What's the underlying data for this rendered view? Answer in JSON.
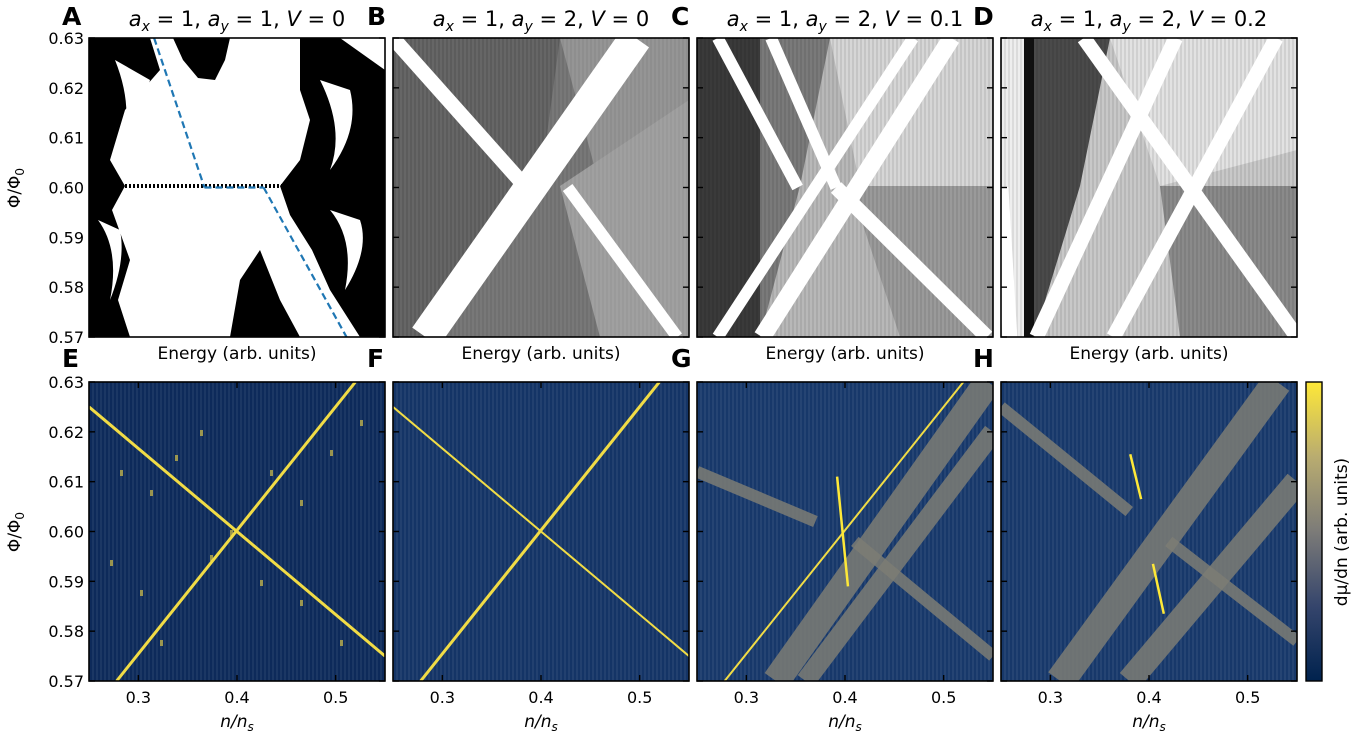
{
  "figure": {
    "panel_labels": [
      "A",
      "B",
      "C",
      "D",
      "E",
      "F",
      "G",
      "H"
    ],
    "top_titles": [
      {
        "ax": "1",
        "ay": "1",
        "V": "0"
      },
      {
        "ax": "1",
        "ay": "2",
        "V": "0"
      },
      {
        "ax": "1",
        "ay": "2",
        "V": "0.1"
      },
      {
        "ax": "1",
        "ay": "2",
        "V": "0.2"
      }
    ],
    "top_xlabel": "Energy (arb. units)",
    "ylabel_main": "Φ/Φ",
    "ylabel_sub": "0",
    "colorbar_label": "dμ/dn (arb. units)",
    "bottom_xlabel_main": "n/n",
    "bottom_xlabel_sub": "s"
  },
  "chart_data": [
    {
      "type": "heatmap",
      "panel": "A",
      "title": "a_x = 1, a_y = 1, V = 0",
      "xlabel": "Energy (arb. units)",
      "ylabel": "Φ/Φ0",
      "yticks": [
        "0.57",
        "0.58",
        "0.59",
        "0.60",
        "0.61",
        "0.62",
        "0.63"
      ],
      "ylim": [
        0.57,
        0.63
      ],
      "colormap": "gray",
      "overlay": {
        "style": "dashed",
        "color": "#1f77b4",
        "segments": [
          [
            [
              0.22,
              0.63
            ],
            [
              0.39,
              0.6
            ]
          ],
          [
            [
              0.39,
              0.6
            ],
            [
              0.59,
              0.6
            ]
          ],
          [
            [
              0.59,
              0.6
            ],
            [
              0.87,
              0.57
            ]
          ]
        ]
      },
      "bands": []
    },
    {
      "type": "heatmap",
      "panel": "B",
      "title": "a_x = 1, a_y = 2, V = 0",
      "xlabel": "Energy (arb. units)",
      "ylim": [
        0.57,
        0.63
      ],
      "colormap": "gray",
      "bands": [
        {
          "x0": 0.0,
          "y0": 0.63,
          "x1": 0.45,
          "y1": 0.6,
          "w": 0.05
        },
        {
          "x0": 0.11,
          "y0": 0.57,
          "x1": 0.82,
          "y1": 0.63,
          "w": 0.11
        },
        {
          "x0": 0.59,
          "y0": 0.6,
          "x1": 0.96,
          "y1": 0.57,
          "w": 0.04
        }
      ]
    },
    {
      "type": "heatmap",
      "panel": "C",
      "title": "a_x = 1, a_y = 2, V = 0.1",
      "xlabel": "Energy (arb. units)",
      "ylim": [
        0.57,
        0.63
      ],
      "colormap": "gray",
      "bands": [
        {
          "x0": 0.07,
          "y0": 0.63,
          "x1": 0.34,
          "y1": 0.6,
          "w": 0.04
        },
        {
          "x0": 0.25,
          "y0": 0.63,
          "x1": 0.47,
          "y1": 0.6,
          "w": 0.04
        },
        {
          "x0": 0.47,
          "y0": 0.6,
          "x1": 0.98,
          "y1": 0.57,
          "w": 0.05
        },
        {
          "x0": 0.07,
          "y0": 0.57,
          "x1": 0.73,
          "y1": 0.63,
          "w": 0.04
        },
        {
          "x0": 0.22,
          "y0": 0.57,
          "x1": 0.86,
          "y1": 0.63,
          "w": 0.06
        }
      ]
    },
    {
      "type": "heatmap",
      "panel": "D",
      "title": "a_x = 1, a_y = 2, V = 0.2",
      "xlabel": "Energy (arb. units)",
      "ylim": [
        0.57,
        0.63
      ],
      "colormap": "gray",
      "bands": [
        {
          "x0": 0.0,
          "y0": 0.6,
          "x1": 0.03,
          "y1": 0.57,
          "w": 0.05
        },
        {
          "x0": 0.28,
          "y0": 0.63,
          "x1": 0.64,
          "y1": 0.6,
          "w": 0.05
        },
        {
          "x0": 0.64,
          "y0": 0.6,
          "x1": 1.0,
          "y1": 0.57,
          "w": 0.05
        },
        {
          "x0": 0.12,
          "y0": 0.57,
          "x1": 0.59,
          "y1": 0.63,
          "w": 0.05
        },
        {
          "x0": 0.38,
          "y0": 0.57,
          "x1": 0.93,
          "y1": 0.63,
          "w": 0.05
        }
      ]
    },
    {
      "type": "heatmap",
      "panel": "E",
      "xlabel": "n/n_s",
      "ylabel": "Φ/Φ0",
      "xticks": [
        "0.3",
        "0.4",
        "0.5"
      ],
      "xlim": [
        0.25,
        0.55
      ],
      "ylim": [
        0.57,
        0.63
      ],
      "colormap": "cividis",
      "lines": [
        {
          "x0": 0.278,
          "y0": 0.57,
          "x1": 0.52,
          "y1": 0.63,
          "w": 3
        },
        {
          "x0": 0.25,
          "y0": 0.625,
          "x1": 0.55,
          "y1": 0.575,
          "w": 3
        }
      ],
      "steps": [],
      "slabs": []
    },
    {
      "type": "heatmap",
      "panel": "F",
      "xlabel": "n/n_s",
      "xticks": [
        "0.3",
        "0.4",
        "0.5"
      ],
      "xlim": [
        0.25,
        0.55
      ],
      "ylim": [
        0.57,
        0.63
      ],
      "colormap": "cividis",
      "lines": [
        {
          "x0": 0.278,
          "y0": 0.57,
          "x1": 0.52,
          "y1": 0.63,
          "w": 3
        },
        {
          "x0": 0.25,
          "y0": 0.625,
          "x1": 0.55,
          "y1": 0.575,
          "w": 2
        }
      ],
      "steps": [],
      "slabs": []
    },
    {
      "type": "heatmap",
      "panel": "G",
      "xlabel": "n/n_s",
      "xticks": [
        "0.3",
        "0.4",
        "0.5"
      ],
      "xlim": [
        0.25,
        0.55
      ],
      "ylim": [
        0.57,
        0.63
      ],
      "colormap": "cividis",
      "lines": [
        {
          "x0": 0.278,
          "y0": 0.57,
          "x1": 0.52,
          "y1": 0.63,
          "w": 2
        }
      ],
      "steps": [
        {
          "x0": 0.392,
          "y0": 0.611,
          "x1": 0.403,
          "y1": 0.589
        }
      ],
      "slabs": [
        {
          "x0": 0.33,
          "y0": 0.57,
          "x1": 0.545,
          "y1": 0.63,
          "w": 0.028
        },
        {
          "x0": 0.36,
          "y0": 0.57,
          "x1": 0.55,
          "y1": 0.62,
          "w": 0.02
        },
        {
          "x0": 0.25,
          "y0": 0.612,
          "x1": 0.37,
          "y1": 0.602,
          "w": 0.012
        },
        {
          "x0": 0.41,
          "y0": 0.598,
          "x1": 0.55,
          "y1": 0.575,
          "w": 0.012
        }
      ]
    },
    {
      "type": "heatmap",
      "panel": "H",
      "xlabel": "n/n_s",
      "xticks": [
        "0.3",
        "0.4",
        "0.5"
      ],
      "xlim": [
        0.25,
        0.55
      ],
      "ylim": [
        0.57,
        0.63
      ],
      "colormap": "cividis",
      "lines": [],
      "steps": [
        {
          "x0": 0.381,
          "y0": 0.6155,
          "x1": 0.392,
          "y1": 0.6065
        },
        {
          "x0": 0.404,
          "y0": 0.5935,
          "x1": 0.415,
          "y1": 0.5835
        }
      ],
      "slabs": [
        {
          "x0": 0.31,
          "y0": 0.57,
          "x1": 0.53,
          "y1": 0.63,
          "w": 0.03
        },
        {
          "x0": 0.38,
          "y0": 0.57,
          "x1": 0.55,
          "y1": 0.61,
          "w": 0.025
        },
        {
          "x0": 0.25,
          "y0": 0.625,
          "x1": 0.38,
          "y1": 0.604,
          "w": 0.012
        },
        {
          "x0": 0.42,
          "y0": 0.598,
          "x1": 0.55,
          "y1": 0.578,
          "w": 0.012
        }
      ]
    }
  ]
}
